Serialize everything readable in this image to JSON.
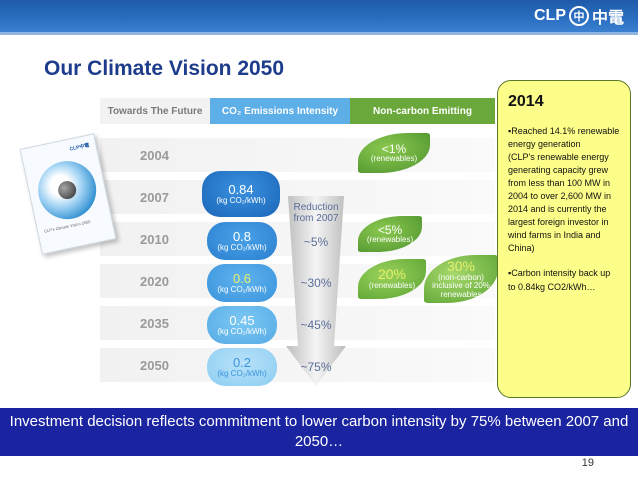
{
  "header": {
    "logo_text": "CLP",
    "logo_chinese": "中電",
    "logo_circle": "中"
  },
  "title": "Our Climate Vision 2050",
  "columns": {
    "future": "Towards The Future",
    "intensity": "CO₂ Emissions Intensity",
    "noncarbon": "Non-carbon Emitting"
  },
  "years": [
    "2004",
    "2007",
    "2010",
    "2020",
    "2035",
    "2050"
  ],
  "intensity": {
    "unit": "(kg CO₂/kWh)",
    "values": {
      "y2007": "0.84",
      "y2010": "0.8",
      "y2020": "0.6",
      "y2035": "0.45",
      "y2050": "0.2"
    }
  },
  "reduction": {
    "label": "Reduction from 2007",
    "values": {
      "y2010": "~5%",
      "y2020": "~30%",
      "y2035": "~45%",
      "y2050": "~75%"
    }
  },
  "noncarbon": {
    "y2004": {
      "value": "<1%",
      "unit": "(renewables)"
    },
    "y2010": {
      "value": "<5%",
      "unit": "(renewables)"
    },
    "y2020a": {
      "value": "20%",
      "unit": "(renewables)"
    },
    "y2020b": {
      "value": "30%",
      "unit": "(non-carbon) inclusive of 20% renewables"
    }
  },
  "brochure": {
    "logo": "CLP中電",
    "title": "CLP's Climate Vision 2050"
  },
  "info": {
    "year": "2014",
    "para1": "▪Reached 14.1% renewable energy generation\n(CLP's renewable energy generating capacity grew from less than 100 MW in 2004 to over 2,600 MW in 2014 and is currently the largest foreign investor in wind farms in India and China)",
    "para2": "▪Carbon intensity back up to 0.84kg CO2/kWh…"
  },
  "banner": "Investment decision reflects commitment to lower carbon intensity by 75% between 2007 and 2050…",
  "page_number": "19"
}
